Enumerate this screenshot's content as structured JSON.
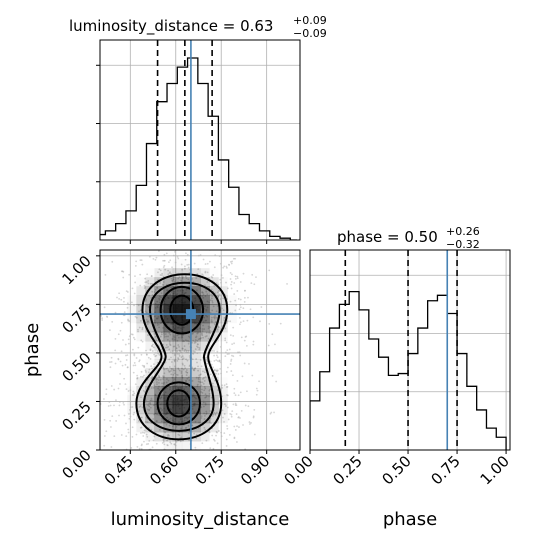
{
  "chart_data": [
    {
      "type": "histogram",
      "panel": "luminosity_distance marginal",
      "title": {
        "param": "luminosity_distance",
        "value": "0.63",
        "plus": "+0.09",
        "minus": "−0.09"
      },
      "bin_edges": [
        0.3,
        0.3339,
        0.3678,
        0.4017,
        0.4356,
        0.4695,
        0.5034,
        0.5373,
        0.5712,
        0.6051,
        0.639,
        0.6729,
        0.7068,
        0.7407,
        0.7746,
        0.8085,
        0.8424,
        0.8763,
        0.9102,
        0.9441,
        0.978,
        1.0
      ],
      "counts": [
        0.01,
        0.03,
        0.05,
        0.09,
        0.16,
        0.3,
        0.53,
        0.76,
        0.86,
        0.95,
        1.0,
        0.86,
        0.68,
        0.44,
        0.29,
        0.14,
        0.09,
        0.05,
        0.02,
        0.01,
        0.0
      ],
      "quantiles": [
        0.54,
        0.63,
        0.72
      ],
      "truth": 0.65,
      "xlim": [
        0.35,
        1.01
      ],
      "grid": true
    },
    {
      "type": "histogram",
      "panel": "phase marginal",
      "title": {
        "param": "phase",
        "value": "0.50",
        "plus": "+0.26",
        "minus": "−0.32"
      },
      "bin_edges": [
        0.0,
        0.05,
        0.1,
        0.15,
        0.2,
        0.25,
        0.3,
        0.35,
        0.4,
        0.45,
        0.5,
        0.55,
        0.6,
        0.65,
        0.7,
        0.75,
        0.8,
        0.85,
        0.9,
        0.95,
        1.0
      ],
      "counts": [
        0.27,
        0.43,
        0.67,
        0.8,
        0.87,
        0.77,
        0.61,
        0.51,
        0.41,
        0.42,
        0.53,
        0.67,
        0.82,
        0.85,
        0.75,
        0.53,
        0.35,
        0.22,
        0.12,
        0.07
      ],
      "quantiles": [
        0.18,
        0.5,
        0.75
      ],
      "truth": 0.7,
      "xlim": [
        0.0,
        1.02
      ],
      "xticks": [
        "0.00",
        "0.25",
        "0.50",
        "0.75",
        "1.00"
      ],
      "xlabel": "phase",
      "grid": true
    },
    {
      "type": "contour",
      "panel": "luminosity_distance vs phase",
      "x_param": "luminosity_distance",
      "y_param": "phase",
      "xlim": [
        0.35,
        1.01
      ],
      "ylim": [
        0.0,
        1.03
      ],
      "xticks": [
        "0.45",
        "0.60",
        "0.75",
        "0.90"
      ],
      "yticks": [
        "0.00",
        "0.25",
        "0.50",
        "0.75",
        "1.00"
      ],
      "xlabel": "luminosity_distance",
      "ylabel": "phase",
      "density_peaks": [
        {
          "x": 0.62,
          "y": 0.72,
          "weight": 1.0
        },
        {
          "x": 0.61,
          "y": 0.24,
          "weight": 0.85
        }
      ],
      "contour_levels": 4,
      "truth": {
        "x": 0.65,
        "y": 0.7
      },
      "grid": true
    }
  ],
  "colors": {
    "truth_line": "#4682b4",
    "hist_line": "#000000",
    "quantile_line": "#000000",
    "grid": "#b0b0b0",
    "density": "#000000",
    "scatter": "#b4b4b4"
  }
}
